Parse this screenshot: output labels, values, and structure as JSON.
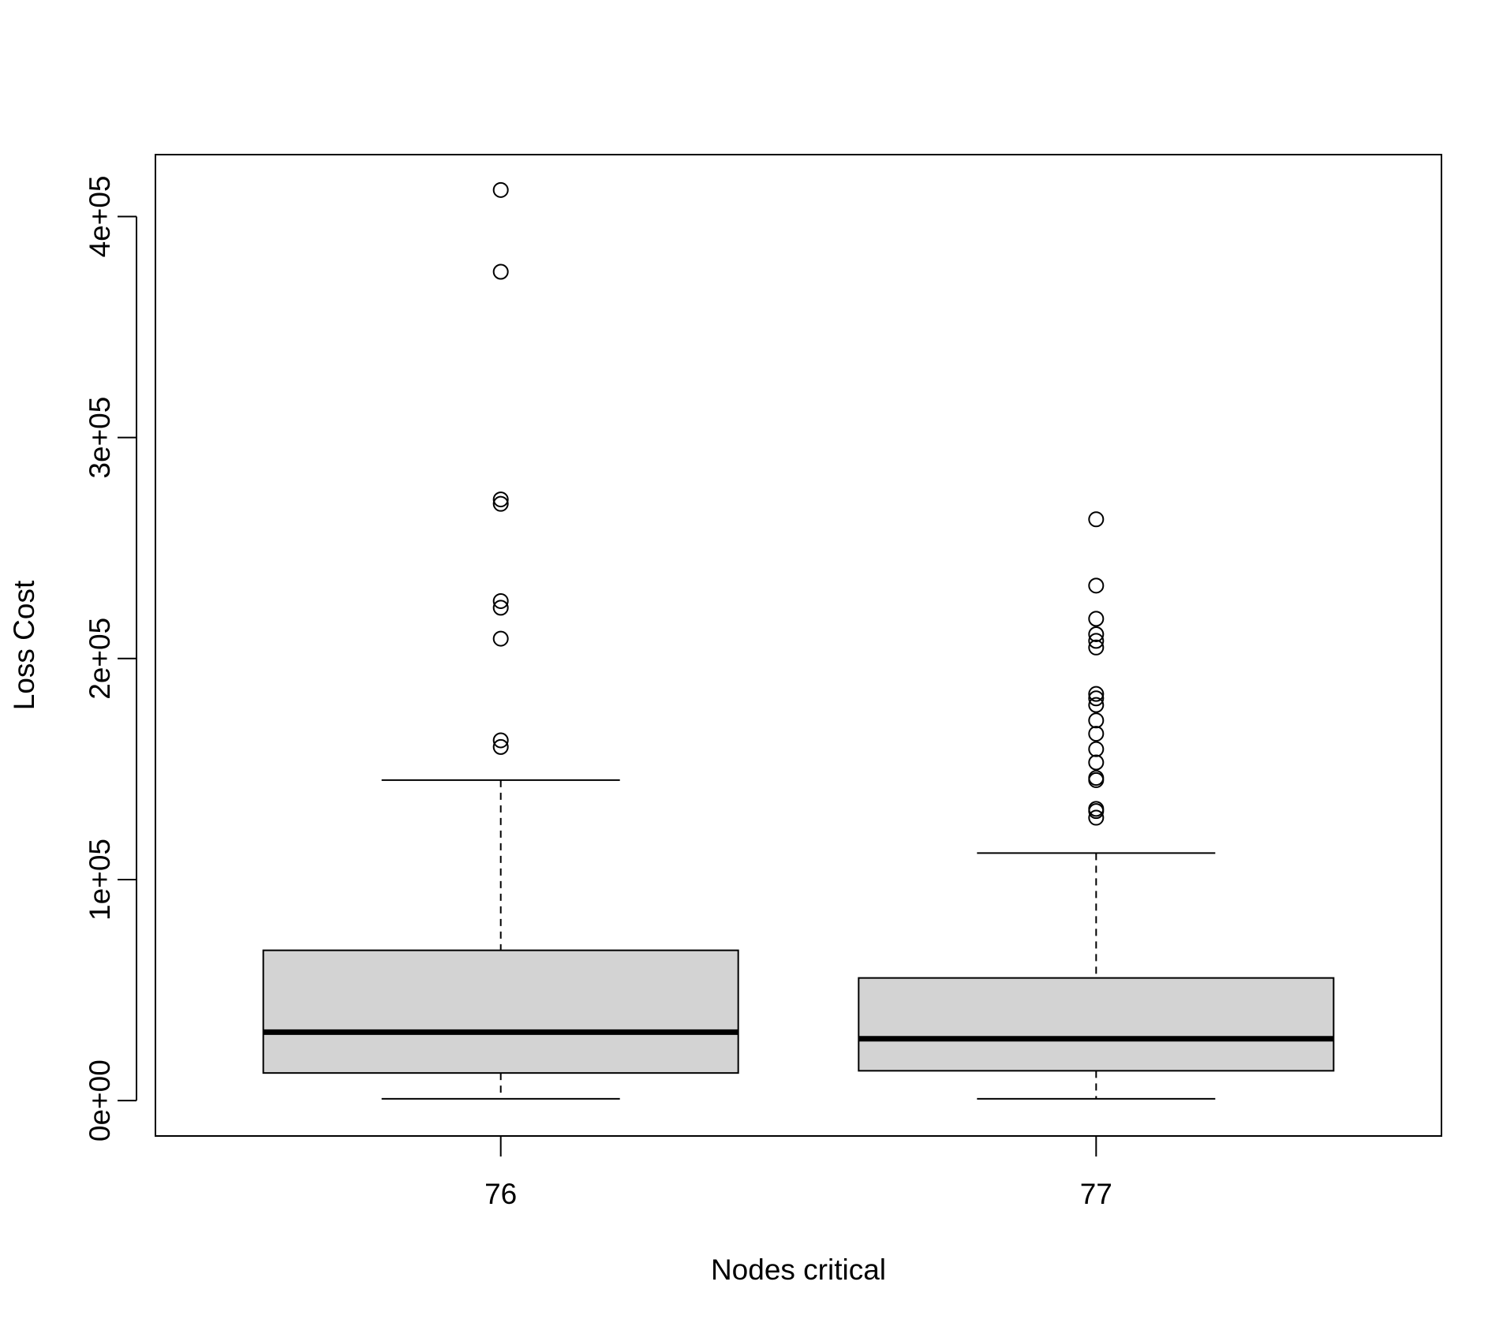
{
  "chart_data": {
    "type": "boxplot",
    "xlabel": "Nodes critical",
    "ylabel": "Loss Cost",
    "ylim": [
      -16000,
      428000
    ],
    "y_ticks": [
      {
        "value": 0,
        "label": "0e+00"
      },
      {
        "value": 100000,
        "label": "1e+05"
      },
      {
        "value": 200000,
        "label": "2e+05"
      },
      {
        "value": 300000,
        "label": "3e+05"
      },
      {
        "value": 400000,
        "label": "4e+05"
      }
    ],
    "box_fill": "#d3d3d3",
    "grid": false,
    "groups": [
      {
        "category": "76",
        "whisker_low": 800,
        "q1": 12500,
        "median": 31000,
        "q3": 68000,
        "whisker_high": 145000,
        "outliers": [
          412000,
          375000,
          272000,
          270000,
          226000,
          223000,
          209000,
          163000,
          160000
        ]
      },
      {
        "category": "77",
        "whisker_low": 800,
        "q1": 13500,
        "median": 28000,
        "q3": 55500,
        "whisker_high": 112000,
        "outliers": [
          263000,
          233000,
          218000,
          211000,
          208000,
          205000,
          184000,
          182000,
          179000,
          172000,
          166000,
          159000,
          153000,
          146000,
          145000,
          132000,
          131000,
          128000
        ]
      }
    ]
  }
}
